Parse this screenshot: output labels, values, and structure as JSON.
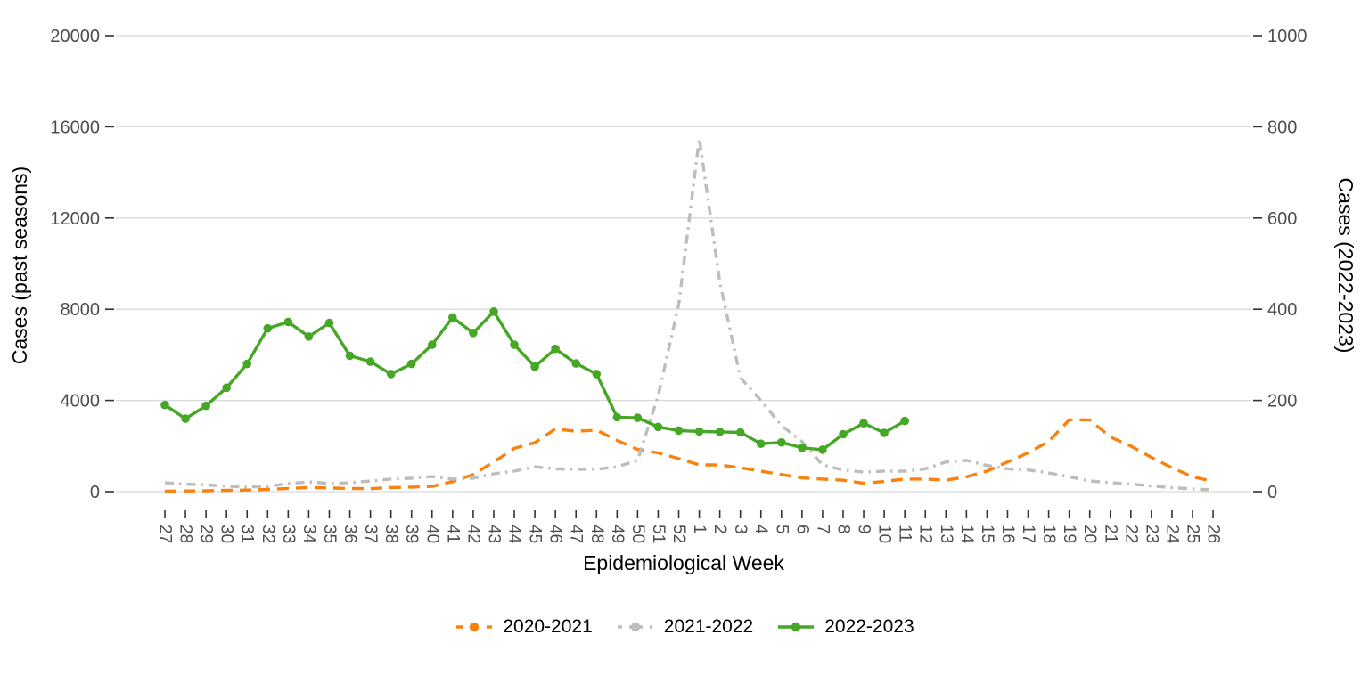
{
  "chart_data": {
    "type": "line",
    "title": "",
    "xlabel": "Epidemiological Week",
    "ylabel_left": "Cases (past seasons)",
    "ylabel_right": "Cases (2022-2023)",
    "grid": "horizontal-only",
    "legend_position": "bottom",
    "x_categories": [
      "27",
      "28",
      "29",
      "30",
      "31",
      "32",
      "33",
      "34",
      "35",
      "36",
      "37",
      "38",
      "39",
      "40",
      "41",
      "42",
      "43",
      "44",
      "45",
      "46",
      "47",
      "48",
      "49",
      "50",
      "51",
      "52",
      "1",
      "2",
      "3",
      "4",
      "5",
      "6",
      "7",
      "8",
      "9",
      "10",
      "11",
      "12",
      "13",
      "14",
      "15",
      "16",
      "17",
      "18",
      "19",
      "20",
      "21",
      "22",
      "23",
      "24",
      "25",
      "26"
    ],
    "left_axis": {
      "ticks": [
        0,
        4000,
        8000,
        12000,
        16000,
        20000
      ],
      "range": [
        0,
        20000
      ]
    },
    "right_axis": {
      "ticks": [
        0,
        200,
        400,
        600,
        800,
        1000
      ],
      "range": [
        0,
        1000
      ]
    },
    "series": [
      {
        "name": "2020-2021",
        "axis": "left",
        "color": "#F8820D",
        "style": "dashed",
        "values": [
          20,
          30,
          40,
          60,
          70,
          100,
          140,
          180,
          160,
          140,
          130,
          180,
          200,
          230,
          440,
          750,
          1300,
          1900,
          2150,
          2750,
          2650,
          2700,
          2250,
          1850,
          1700,
          1450,
          1170,
          1170,
          1050,
          900,
          750,
          600,
          550,
          500,
          370,
          450,
          550,
          550,
          500,
          650,
          900,
          1300,
          1700,
          2200,
          3150,
          3150,
          2400,
          2000,
          1500,
          1050,
          650,
          450
        ]
      },
      {
        "name": "2021-2022",
        "axis": "left",
        "color": "#BDBDBD",
        "style": "dashdot",
        "values": [
          390,
          330,
          300,
          240,
          200,
          230,
          350,
          430,
          360,
          390,
          470,
          550,
          590,
          660,
          550,
          590,
          780,
          900,
          1090,
          1000,
          980,
          980,
          1090,
          1370,
          4200,
          8200,
          15500,
          9200,
          5000,
          4000,
          2900,
          2200,
          1170,
          950,
          860,
          900,
          900,
          1000,
          1300,
          1370,
          1150,
          1000,
          950,
          820,
          650,
          470,
          400,
          330,
          250,
          170,
          120,
          80
        ]
      },
      {
        "name": "2022-2023",
        "axis": "right",
        "color": "#46A625",
        "style": "solid-markers",
        "values": [
          190,
          160,
          188,
          228,
          280,
          358,
          372,
          340,
          370,
          298,
          285,
          258,
          280,
          322,
          382,
          348,
          395,
          322,
          274,
          313,
          281,
          258,
          163,
          162,
          142,
          134,
          132,
          131,
          130,
          105,
          108,
          96,
          92,
          126,
          150,
          129,
          155,
          null,
          null,
          null,
          null,
          null,
          null,
          null,
          null,
          null,
          null,
          null,
          null,
          null,
          null,
          null
        ]
      }
    ],
    "colors": {
      "gridline": "#D9D9D9",
      "tick_mark": "#333333",
      "tick_label": "#4D4D4D",
      "axis_title": "#000000"
    }
  }
}
